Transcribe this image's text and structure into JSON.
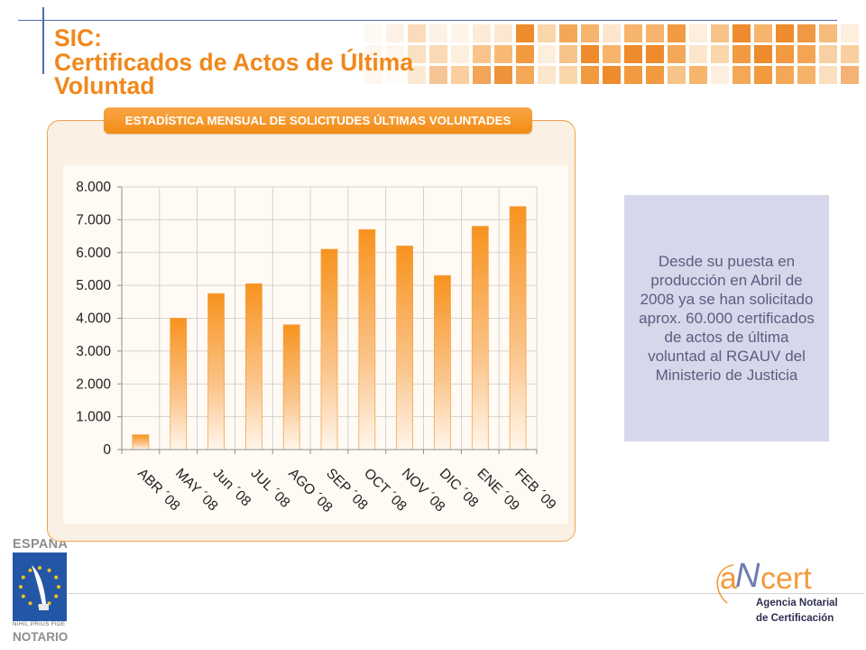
{
  "slide": {
    "title_lines": [
      "SIC:",
      "Certificados de Actos de Última",
      "Voluntad"
    ]
  },
  "chart_data": {
    "type": "bar",
    "title": "ESTADÍSTICA MENSUAL DE SOLICITUDES ÚLTIMAS VOLUNTADES",
    "categories": [
      "ABR ´08",
      "MAY ´08",
      "Jun ´08",
      "JUL ´08",
      "AGO ´08",
      "SEP ´08",
      "OCT ´08",
      "NOV ´08",
      "DIC ´08",
      "ENE ´09",
      "FEB ´09"
    ],
    "values": [
      450,
      4000,
      4750,
      5050,
      3800,
      6100,
      6700,
      6200,
      5300,
      6800,
      7400
    ],
    "ylim": [
      0,
      8000
    ],
    "yticks": [
      0,
      1000,
      2000,
      3000,
      4000,
      5000,
      6000,
      7000,
      8000
    ],
    "ytick_labels": [
      "0",
      "1.000",
      "2.000",
      "3.000",
      "4.000",
      "5.000",
      "6.000",
      "7.000",
      "8.000"
    ],
    "grid": true,
    "legend": "none",
    "bar_color": "#f7931e"
  },
  "info_box": {
    "lines": [
      "Desde su puesta en",
      "producción en Abril de",
      "2008 ya se han solicitado",
      "aprox. 60.000 certificados",
      "de actos de última",
      "voluntad al RGAUV del",
      "Ministerio de Justicia"
    ]
  },
  "logos": {
    "espana": {
      "country": "ESPAÑA",
      "motto": "NIHIL PRIUS FIDE",
      "name": "NOTARIO",
      "icon": "notary-shield-icon"
    },
    "ancert": {
      "mark_a": "a",
      "mark_n": "N",
      "mark_cert": "cert",
      "line1": "Agencia Notarial",
      "line2": "de Certificación"
    }
  },
  "colors": {
    "title": "#f0881c",
    "accent_blue": "#4a6fb0",
    "banner": "#f28c16",
    "info_background": "#d6d7ea",
    "info_text": "#5b5d80",
    "logo_orange": "#f29b3c",
    "logo_blue": "#6f7db0"
  }
}
